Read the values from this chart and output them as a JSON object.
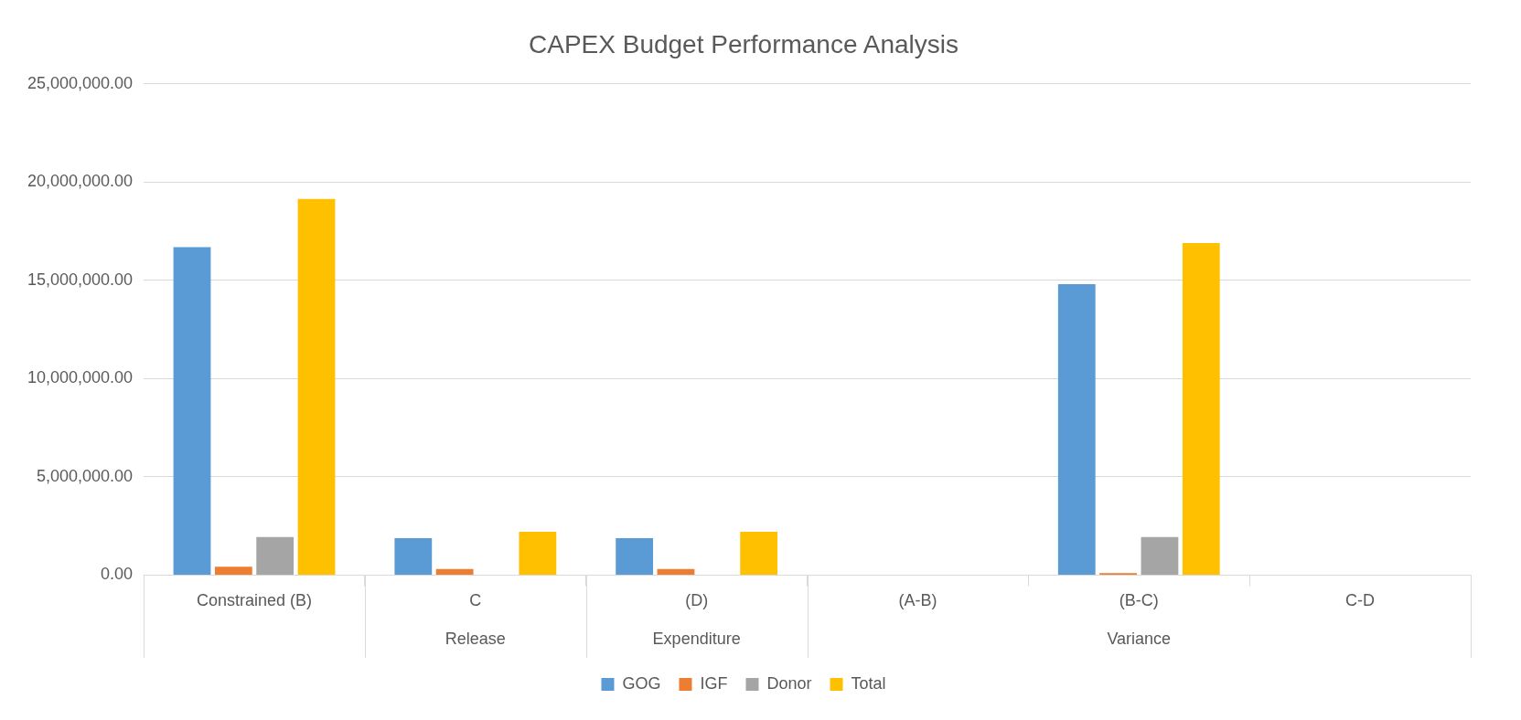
{
  "chart_data": {
    "type": "bar",
    "title": "CAPEX Budget Performance Analysis",
    "categories": [
      "Constrained (B)",
      "C",
      "(D)",
      "(A-B)",
      "(B-C)",
      "C-D"
    ],
    "series": [
      {
        "name": "GOG",
        "color": "#5b9bd5",
        "values": [
          16680000,
          1880000,
          1880000,
          0,
          14800000,
          0
        ]
      },
      {
        "name": "IGF",
        "color": "#ed7d31",
        "values": [
          420000,
          310000,
          310000,
          0,
          100000,
          0
        ]
      },
      {
        "name": "Donor",
        "color": "#a5a5a5",
        "values": [
          1940000,
          0,
          0,
          0,
          1940000,
          0
        ]
      },
      {
        "name": "Total",
        "color": "#ffc000",
        "values": [
          19140000,
          2200000,
          2200000,
          0,
          16890000,
          0
        ]
      }
    ],
    "ylim": [
      0,
      25000000
    ],
    "yticks": [
      {
        "value": 0,
        "label": "0.00"
      },
      {
        "value": 5000000,
        "label": "5,000,000.00"
      },
      {
        "value": 10000000,
        "label": "10,000,000.00"
      },
      {
        "value": 15000000,
        "label": "15,000,000.00"
      },
      {
        "value": 20000000,
        "label": "20,000,000.00"
      },
      {
        "value": 25000000,
        "label": "25,000,000.00"
      }
    ],
    "annotations": [
      "Release",
      "Expenditure",
      "Variance"
    ],
    "grid": "y",
    "legend": "bottom"
  }
}
